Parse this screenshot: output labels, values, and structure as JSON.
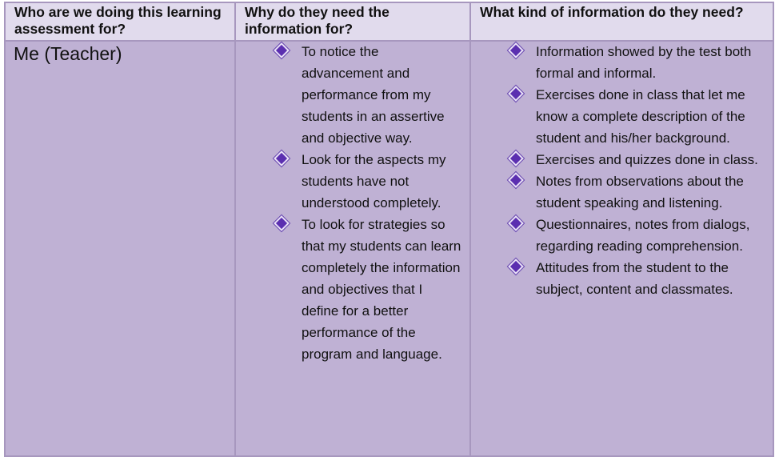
{
  "table": {
    "headers": [
      "Who are we doing this learning assessment for?",
      "Why do they need the information for?",
      "What kind of information do they need?"
    ],
    "rows": [
      {
        "who": "Me (Teacher)",
        "why": [
          "To notice the advancement and performance from my students in an assertive and objective way.",
          "Look for the aspects my students have not understood completely.",
          "To look for strategies so that my students can learn completely the information and objectives that I define for a better performance of the program and language."
        ],
        "what": [
          "Information showed by the test both formal and informal.",
          "Exercises done in class that let me know a complete description of the student and his/her background.",
          "Exercises and quizzes done in class.",
          "Notes from observations about the student speaking and listening.",
          "Questionnaires, notes from dialogs, regarding reading comprehension.",
          "Attitudes from the student to the subject, content and classmates."
        ]
      }
    ],
    "bullet_icon": "diamond-bullet-icon",
    "colors": {
      "header_bg": "#e1dbed",
      "body_bg": "#bfb1d4",
      "border": "#a797be",
      "bullet": "#5b2fb0"
    }
  }
}
